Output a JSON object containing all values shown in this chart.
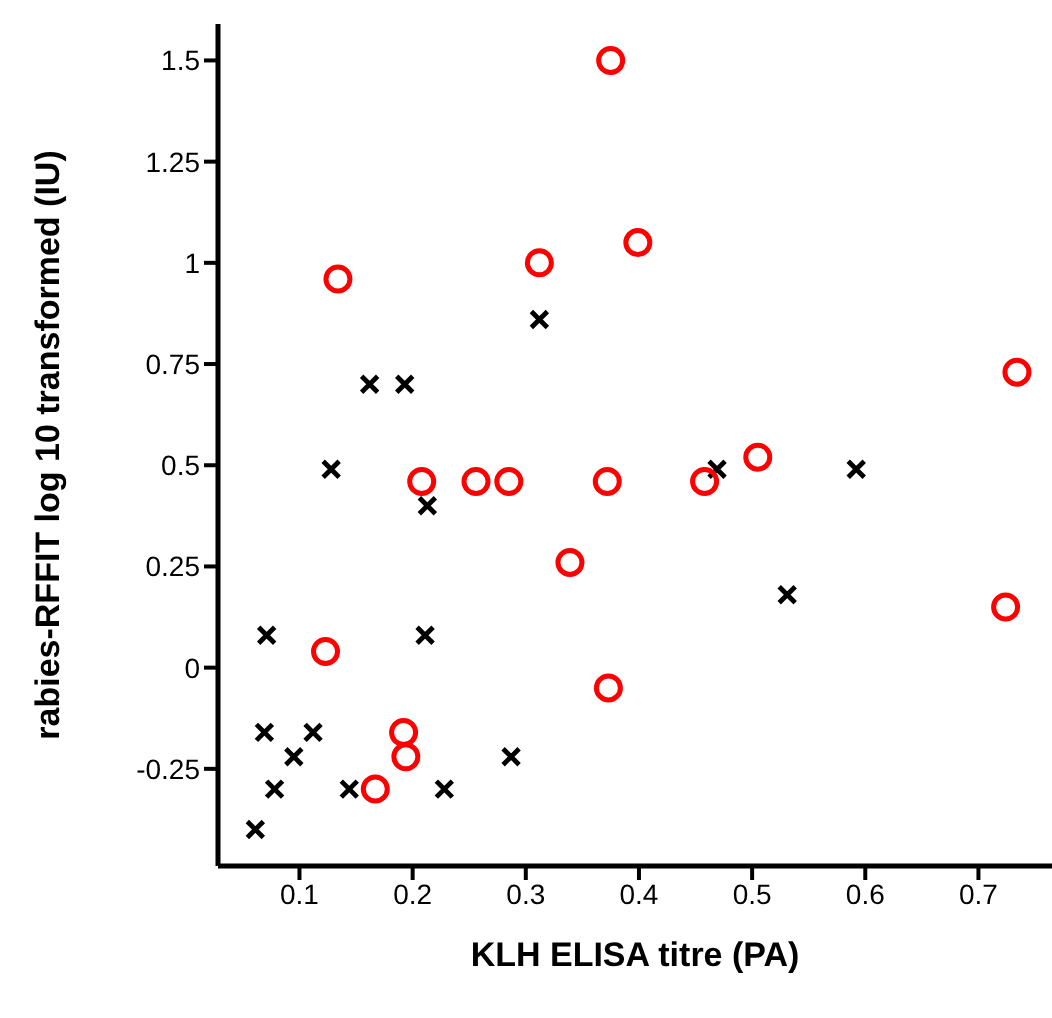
{
  "chart_data": {
    "type": "scatter",
    "xlabel": "KLH ELISA titre (PA)",
    "ylabel": "rabies-RFFIT log 10 transformed (IU)",
    "xlim": [
      0.028,
      0.765
    ],
    "xticks": [
      0.1,
      0.2,
      0.3,
      0.4,
      0.5,
      0.6,
      0.7
    ],
    "ylim": [
      -0.49,
      1.59
    ],
    "yticks": [
      -0.25,
      0,
      0.25,
      0.5,
      0.75,
      1,
      1.25,
      1.5
    ],
    "grid": false,
    "legend": false,
    "series": [
      {
        "color": "#000000",
        "marker": "cross",
        "x": [
          0.162,
          0.193,
          0.128,
          0.213,
          0.312,
          0.071,
          0.211,
          0.069,
          0.112,
          0.095,
          0.287,
          0.078,
          0.144,
          0.228,
          0.061,
          0.469,
          0.592,
          0.531
        ],
        "values": [
          0.7,
          0.7,
          0.49,
          0.4,
          0.86,
          0.08,
          0.08,
          -0.16,
          -0.16,
          -0.22,
          -0.22,
          -0.3,
          -0.3,
          -0.3,
          -0.4,
          0.49,
          0.49,
          0.18
        ]
      },
      {
        "color": "#ff0000",
        "marker": "circle",
        "x": [
          0.375,
          0.399,
          0.312,
          0.134,
          0.208,
          0.256,
          0.285,
          0.372,
          0.458,
          0.505,
          0.734,
          0.724,
          0.339,
          0.123,
          0.373,
          0.192,
          0.194,
          0.167
        ],
        "values": [
          1.5,
          1.05,
          1.0,
          0.96,
          0.46,
          0.46,
          0.46,
          0.46,
          0.46,
          0.52,
          0.73,
          0.15,
          0.26,
          0.04,
          -0.05,
          -0.16,
          -0.22,
          -0.3
        ]
      }
    ]
  }
}
